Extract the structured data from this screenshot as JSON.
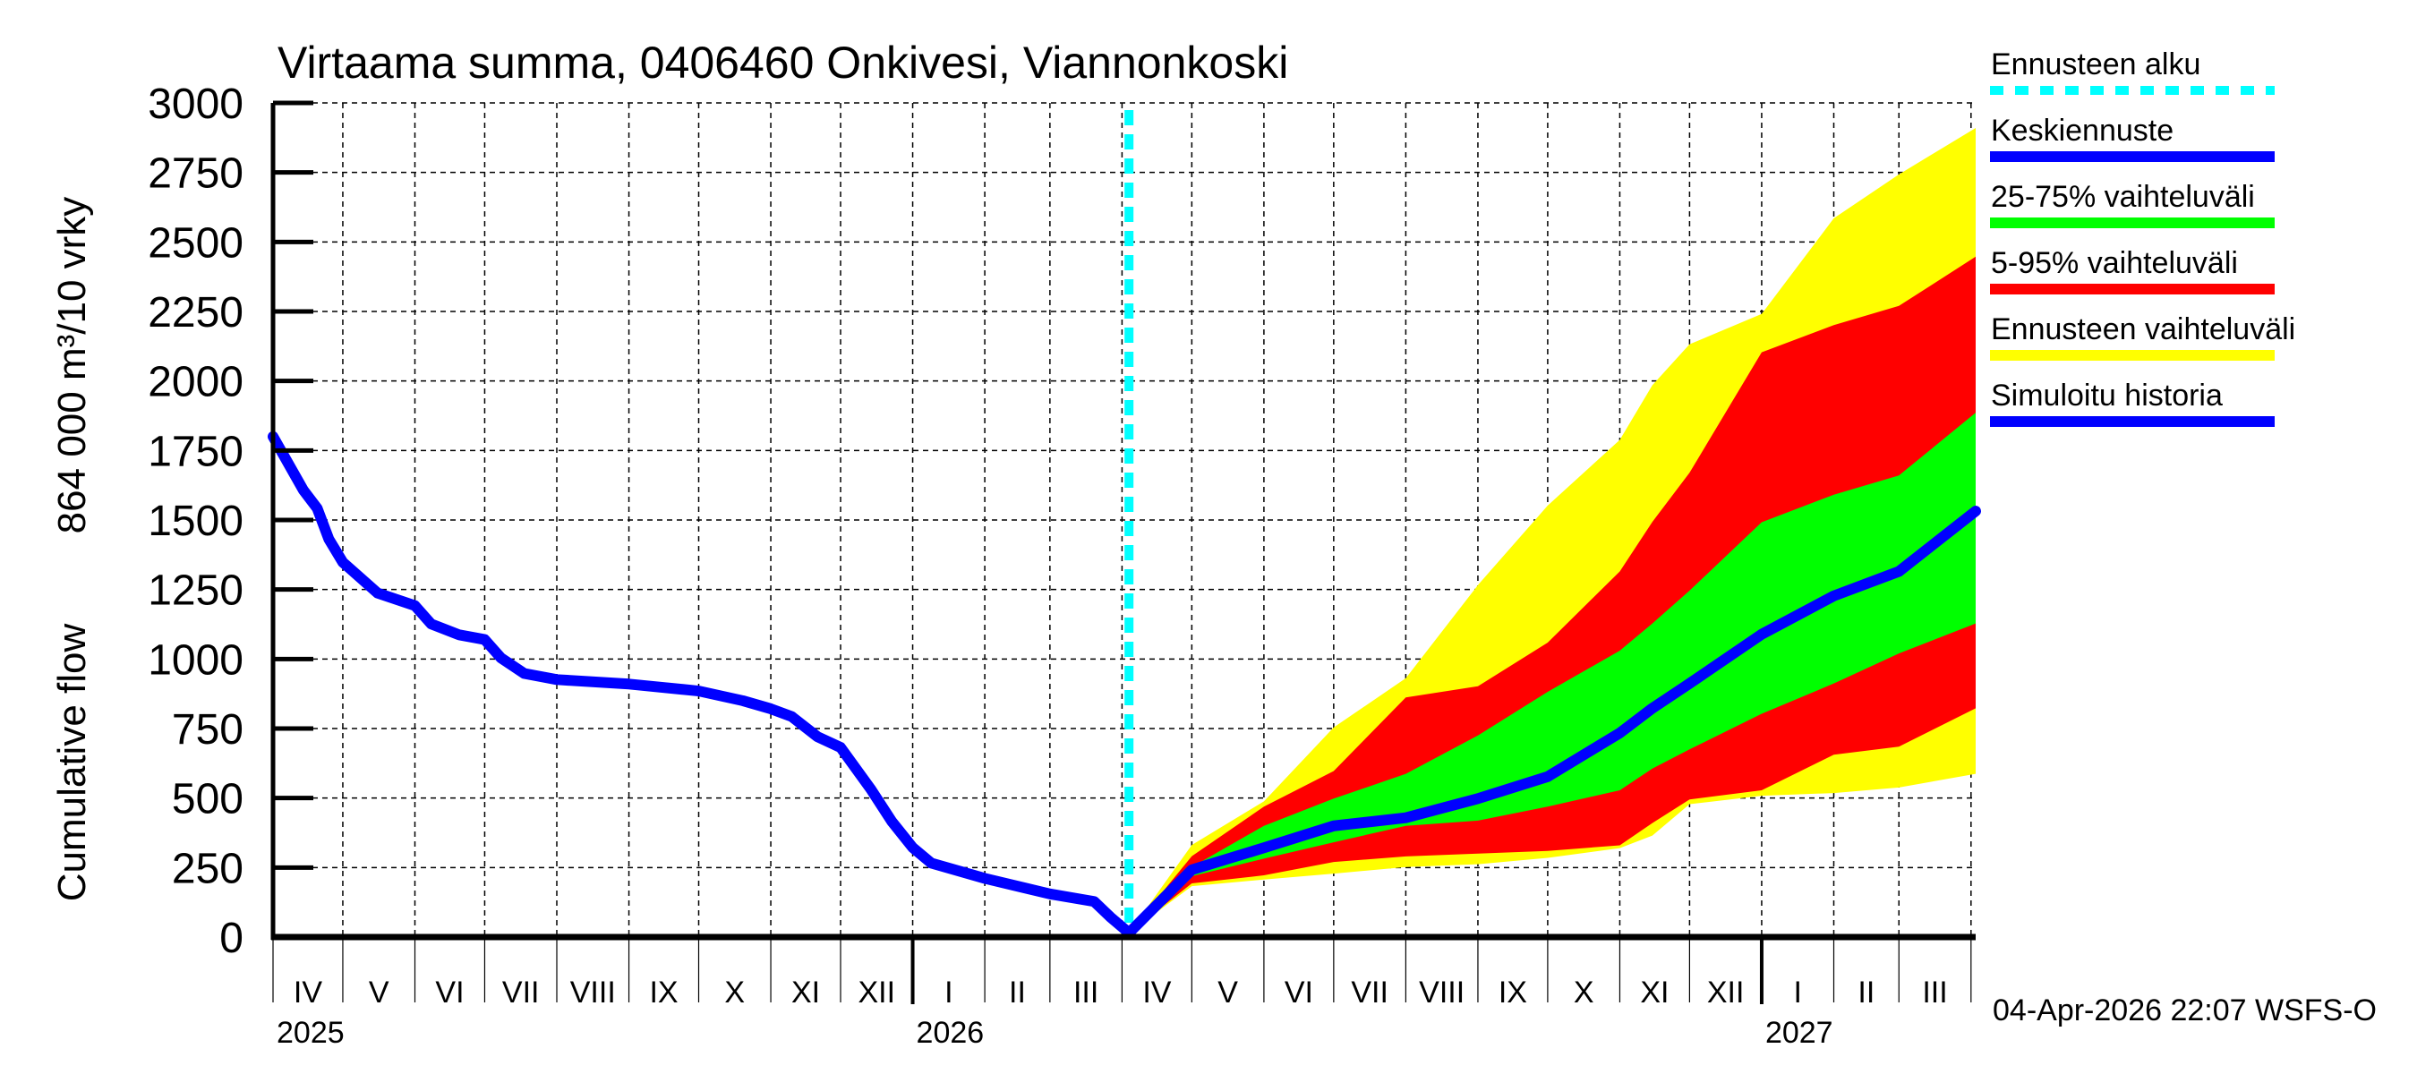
{
  "chart_data": {
    "type": "area",
    "title": "Virtaama summa, 0406460 Onkivesi, Viannonkoski",
    "ylabel": [
      "Cumulative flow",
      "864 000 m³/10 vrky"
    ],
    "ylim": [
      0,
      3000
    ],
    "yticks": [
      0,
      250,
      500,
      750,
      1000,
      1250,
      1500,
      1750,
      2000,
      2250,
      2500,
      2750,
      3000
    ],
    "xlim": [
      "2025-04-01",
      "2027-04-03"
    ],
    "month_labels": [
      "IV",
      "V",
      "VI",
      "VII",
      "VIII",
      "IX",
      "X",
      "XI",
      "XII",
      "I",
      "II",
      "III",
      "IV",
      "V",
      "VI",
      "VII",
      "VIII",
      "IX",
      "X",
      "XI",
      "XII",
      "I",
      "II",
      "III"
    ],
    "year_labels": [
      {
        "label": "2025",
        "date": "2025-04-01"
      },
      {
        "label": "2026",
        "date": "2026-01-01"
      },
      {
        "label": "2027",
        "date": "2027-01-01"
      }
    ],
    "grid": true,
    "legend_position": "right",
    "forecast_start": "2026-04-04",
    "timestamp": "04-Apr-2026 22:07 WSFS-O",
    "colors": {
      "forecast_start": "#00ffff",
      "median": "#0000ff",
      "band_25_75": "#00ff00",
      "band_5_95": "#ff0000",
      "band_full": "#ffff00",
      "history": "#0000ff"
    },
    "legend": [
      {
        "key": "forecast_start",
        "label": "Ennusteen alku",
        "style": "dashed"
      },
      {
        "key": "median",
        "label": "Keskiennuste",
        "style": "solid"
      },
      {
        "key": "band_25_75",
        "label": "25-75% vaihteluväli",
        "style": "solid"
      },
      {
        "key": "band_5_95",
        "label": "5-95% vaihteluväli",
        "style": "solid"
      },
      {
        "key": "band_full",
        "label": "Ennusteen vaihteluväli",
        "style": "solid"
      },
      {
        "key": "history",
        "label": "Simuloitu historia",
        "style": "solid"
      }
    ],
    "history": {
      "x": [
        "2025-04-01",
        "2025-04-14",
        "2025-04-20",
        "2025-04-25",
        "2025-05-01",
        "2025-05-16",
        "2025-06-01",
        "2025-06-08",
        "2025-06-20",
        "2025-07-01",
        "2025-07-08",
        "2025-07-18",
        "2025-08-01",
        "2025-09-01",
        "2025-10-01",
        "2025-10-20",
        "2025-11-01",
        "2025-11-10",
        "2025-11-21",
        "2025-12-01",
        "2025-12-14",
        "2025-12-23",
        "2026-01-01",
        "2026-01-09",
        "2026-02-01",
        "2026-03-01",
        "2026-03-20",
        "2026-03-27",
        "2026-04-04"
      ],
      "y": [
        1800,
        1608,
        1542,
        1431,
        1348,
        1237,
        1192,
        1126,
        1087,
        1070,
        1004,
        948,
        926,
        910,
        885,
        850,
        821,
        793,
        721,
        682,
        532,
        416,
        322,
        266,
        211,
        155,
        128,
        72,
        15
      ]
    },
    "forecast": {
      "x": [
        "2026-04-04",
        "2026-05-01",
        "2026-06-01",
        "2026-07-01",
        "2026-08-01",
        "2026-09-01",
        "2026-10-01",
        "2026-11-01",
        "2026-11-15",
        "2026-12-01",
        "2027-01-01",
        "2027-02-01",
        "2027-03-01",
        "2027-04-03"
      ],
      "full_upper": [
        15,
        331,
        488,
        754,
        931,
        1266,
        1552,
        1788,
        1985,
        2132,
        2241,
        2585,
        2743,
        2910
      ],
      "p95": [
        15,
        291,
        469,
        597,
        862,
        902,
        1059,
        1315,
        1493,
        1670,
        2103,
        2201,
        2270,
        2447
      ],
      "p75": [
        15,
        252,
        400,
        498,
        587,
        725,
        882,
        1030,
        1128,
        1246,
        1492,
        1591,
        1660,
        1886
      ],
      "median": [
        15,
        242,
        321,
        400,
        429,
        498,
        577,
        734,
        823,
        912,
        1089,
        1227,
        1315,
        1532
      ],
      "p25": [
        15,
        219,
        282,
        341,
        400,
        419,
        469,
        528,
        606,
        675,
        803,
        912,
        1020,
        1128
      ],
      "p5": [
        15,
        193,
        222,
        270,
        290,
        300,
        310,
        330,
        410,
        495,
        528,
        656,
        685,
        823
      ],
      "full_lower": [
        15,
        183,
        207,
        228,
        252,
        262,
        285,
        320,
        365,
        478,
        508,
        518,
        538,
        587
      ]
    }
  }
}
